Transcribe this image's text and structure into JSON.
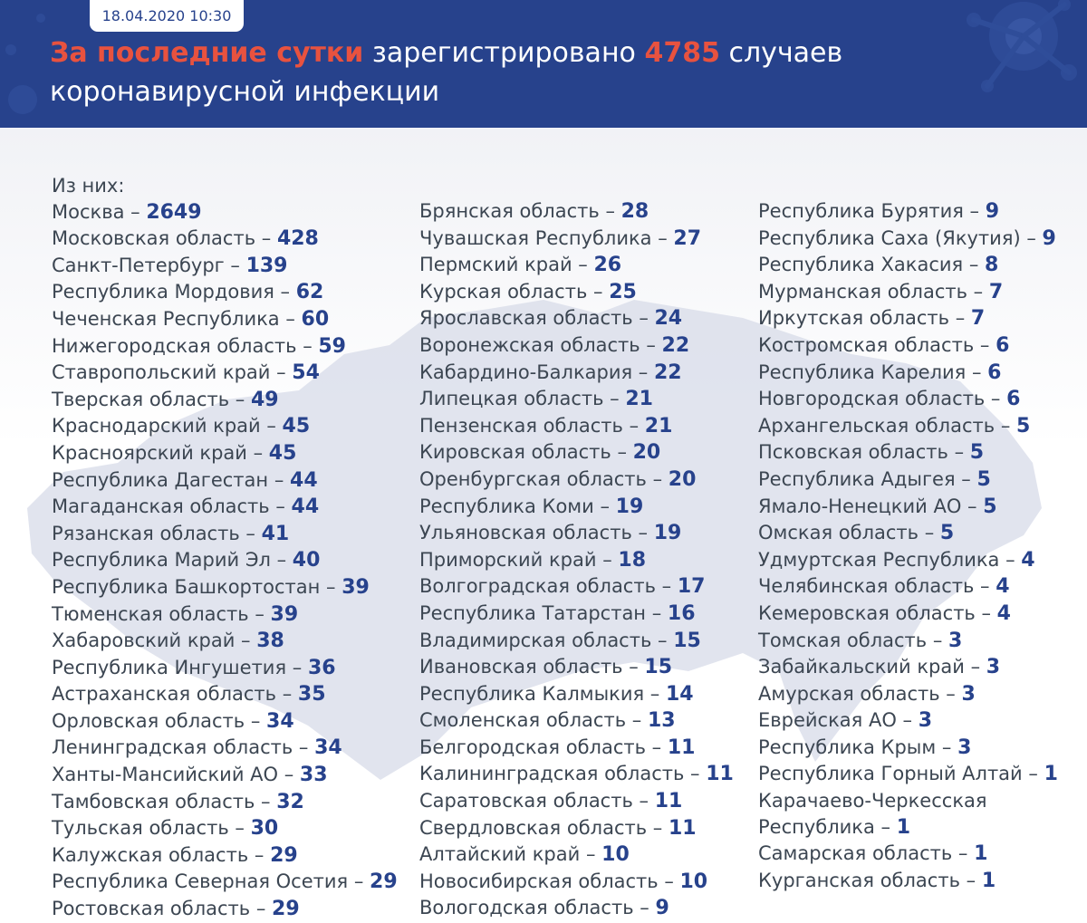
{
  "header": {
    "date": "18.04.2020 10:30",
    "headline_accent": "За последние сутки",
    "headline_mid": "зарегистрировано",
    "total": "4785",
    "headline_end": "случаев",
    "headline_line2": "коронавирусной инфекции"
  },
  "colors": {
    "header_bg": "#27428c",
    "accent": "#e8523f",
    "number": "#27428c",
    "text": "#3c4652"
  },
  "intro": "Из них:",
  "columns": [
    [
      {
        "region": "Москва",
        "count": "2649"
      },
      {
        "region": "Московская область",
        "count": "428"
      },
      {
        "region": "Санкт-Петербург",
        "count": "139"
      },
      {
        "region": "Республика Мордовия",
        "count": "62"
      },
      {
        "region": "Чеченская Республика",
        "count": "60"
      },
      {
        "region": "Нижегородская область",
        "count": "59"
      },
      {
        "region": "Ставропольский край",
        "count": "54"
      },
      {
        "region": "Тверская область",
        "count": "49"
      },
      {
        "region": "Краснодарский край",
        "count": "45"
      },
      {
        "region": "Красноярский край",
        "count": "45"
      },
      {
        "region": "Республика Дагестан",
        "count": "44"
      },
      {
        "region": "Магаданская область",
        "count": "44"
      },
      {
        "region": "Рязанская область",
        "count": "41"
      },
      {
        "region": "Республика Марий Эл",
        "count": "40"
      },
      {
        "region": "Республика Башкортостан",
        "count": "39"
      },
      {
        "region": "Тюменская область",
        "count": "39"
      },
      {
        "region": "Хабаровский край",
        "count": "38"
      },
      {
        "region": "Республика Ингушетия",
        "count": "36"
      },
      {
        "region": "Астраханская область",
        "count": "35"
      },
      {
        "region": "Орловская область",
        "count": "34"
      },
      {
        "region": "Ленинградская область",
        "count": "34"
      },
      {
        "region": "Ханты-Мансийский АО",
        "count": "33"
      },
      {
        "region": "Тамбовская область",
        "count": "32"
      },
      {
        "region": "Тульская область",
        "count": "30"
      },
      {
        "region": "Калужская область",
        "count": "29"
      },
      {
        "region": "Республика Северная Осетия",
        "count": "29"
      },
      {
        "region": "Ростовская область",
        "count": "29"
      }
    ],
    [
      {
        "region": "Брянская область",
        "count": "28"
      },
      {
        "region": "Чувашская Республика",
        "count": "27"
      },
      {
        "region": "Пермский край",
        "count": "26"
      },
      {
        "region": "Курская область",
        "count": "25"
      },
      {
        "region": "Ярославская область",
        "count": "24"
      },
      {
        "region": "Воронежская область",
        "count": "22"
      },
      {
        "region": "Кабардино-Балкария",
        "count": "22"
      },
      {
        "region": "Липецкая область",
        "count": "21"
      },
      {
        "region": "Пензенская область",
        "count": "21"
      },
      {
        "region": "Кировская область",
        "count": "20"
      },
      {
        "region": "Оренбургская область",
        "count": "20"
      },
      {
        "region": "Республика Коми",
        "count": "19"
      },
      {
        "region": "Ульяновская область",
        "count": "19"
      },
      {
        "region": "Приморский край",
        "count": "18"
      },
      {
        "region": "Волгоградская область",
        "count": "17"
      },
      {
        "region": "Республика Татарстан",
        "count": "16"
      },
      {
        "region": "Владимирская область",
        "count": "15"
      },
      {
        "region": "Ивановская область",
        "count": "15"
      },
      {
        "region": "Республика Калмыкия",
        "count": "14"
      },
      {
        "region": "Смоленская область",
        "count": "13"
      },
      {
        "region": "Белгородская область",
        "count": "11"
      },
      {
        "region": "Калининградская область",
        "count": "11"
      },
      {
        "region": "Саратовская область",
        "count": "11"
      },
      {
        "region": "Свердловская область",
        "count": "11"
      },
      {
        "region": "Алтайский край",
        "count": "10"
      },
      {
        "region": "Новосибирская область",
        "count": "10"
      },
      {
        "region": "Вологодская область",
        "count": "9"
      }
    ],
    [
      {
        "region": "Республика Бурятия",
        "count": "9"
      },
      {
        "region": "Республика Саха (Якутия)",
        "count": "9"
      },
      {
        "region": "Республика Хакасия",
        "count": "8"
      },
      {
        "region": "Мурманская область",
        "count": "7"
      },
      {
        "region": "Иркутская область",
        "count": "7"
      },
      {
        "region": "Костромская область",
        "count": "6"
      },
      {
        "region": "Республика Карелия",
        "count": "6"
      },
      {
        "region": "Новгородская область",
        "count": "6"
      },
      {
        "region": "Архангельская область",
        "count": "5"
      },
      {
        "region": "Псковская область",
        "count": "5"
      },
      {
        "region": "Республика Адыгея",
        "count": "5"
      },
      {
        "region": "Ямало-Ненецкий АО",
        "count": "5"
      },
      {
        "region": "Омская область",
        "count": "5"
      },
      {
        "region": "Удмуртская Республика",
        "count": "4"
      },
      {
        "region": "Челябинская область",
        "count": "4"
      },
      {
        "region": "Кемеровская область",
        "count": "4"
      },
      {
        "region": "Томская область",
        "count": "3"
      },
      {
        "region": "Забайкальский край",
        "count": "3"
      },
      {
        "region": "Амурская область",
        "count": "3"
      },
      {
        "region": "Еврейская АО",
        "count": "3"
      },
      {
        "region": "Республика Крым",
        "count": "3"
      },
      {
        "region": "Республика Горный Алтай",
        "count": "1"
      },
      {
        "region": "Карачаево-Черкесская",
        "count": ""
      },
      {
        "region": "Республика",
        "count": "1"
      },
      {
        "region": "Самарская область",
        "count": "1"
      },
      {
        "region": "Курганская область",
        "count": "1"
      }
    ]
  ]
}
